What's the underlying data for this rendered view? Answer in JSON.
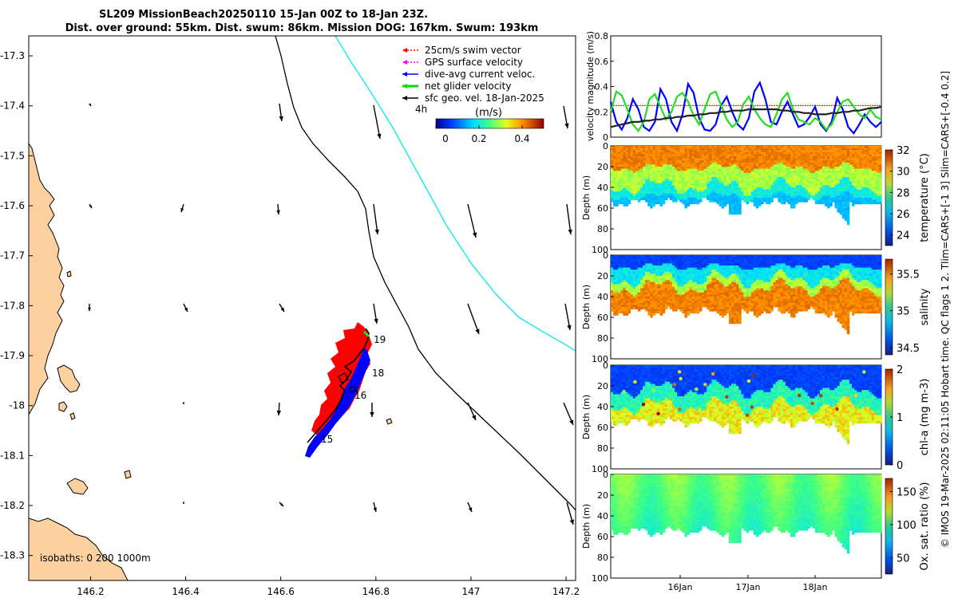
{
  "title": {
    "line1": "SL209 MissionBeach20250110 15-Jan 00Z to 18-Jan 23Z.",
    "line2": "Dist. over ground: 55km. Dist. swum: 86km. Mission DOG: 167km. Swum: 193km"
  },
  "map": {
    "x_ticks": [
      "146.2",
      "146.4",
      "146.6",
      "146.8",
      "147",
      "147.2"
    ],
    "y_ticks": [
      "-17.3",
      "-17.4",
      "-17.5",
      "-17.6",
      "-17.7",
      "-17.8",
      "-17.9",
      "-18",
      "-18.1",
      "-18.2",
      "-18.3"
    ],
    "xlim": [
      146.07,
      147.22
    ],
    "ylim": [
      -18.35,
      -17.26
    ],
    "legend": [
      {
        "label": "25cm/s swim vector",
        "color": "#ff0000"
      },
      {
        "label": "GPS surface velocity",
        "color": "#ff00ff"
      },
      {
        "label": "dive-avg current veloc.",
        "color": "#0000ff"
      },
      {
        "label": "net glider velocity",
        "color": "#00dd00"
      },
      {
        "label": "sfc geo. vel. 18-Jan-2025",
        "color": "#000000"
      }
    ],
    "legend_extra": "4h",
    "colorbar": {
      "label": "(m/s)",
      "ticks": [
        "0",
        "0.2",
        "0.4"
      ]
    },
    "isobaths": "isobaths: 0   200  1000m",
    "track_labels": [
      "19",
      "18",
      "16",
      "15"
    ]
  },
  "chart_data": [
    {
      "type": "line",
      "name": "velocity",
      "ylabel": "velocity magnitude (m/s)",
      "ylim": [
        0,
        0.8
      ],
      "y_ticks": [
        "0",
        "0.2",
        "0.4",
        "0.6",
        "0.8"
      ],
      "series": [
        {
          "name": "dive-avg current veloc.",
          "color": "#0000ff",
          "values": [
            0.28,
            0.12,
            0.06,
            0.15,
            0.3,
            0.22,
            0.08,
            0.05,
            0.12,
            0.38,
            0.3,
            0.12,
            0.05,
            0.18,
            0.42,
            0.35,
            0.15,
            0.06,
            0.05,
            0.1,
            0.25,
            0.32,
            0.2,
            0.1,
            0.06,
            0.15,
            0.36,
            0.43,
            0.3,
            0.12,
            0.1,
            0.2,
            0.28,
            0.18,
            0.08,
            0.1,
            0.16,
            0.24,
            0.1,
            0.05,
            0.12,
            0.31,
            0.22,
            0.08,
            0.03,
            0.1,
            0.18,
            0.12,
            0.08,
            0.12
          ]
        },
        {
          "name": "net glider velocity",
          "color": "#22dd22",
          "values": [
            0.2,
            0.36,
            0.33,
            0.22,
            0.1,
            0.05,
            0.12,
            0.3,
            0.34,
            0.24,
            0.14,
            0.2,
            0.32,
            0.35,
            0.28,
            0.17,
            0.1,
            0.22,
            0.34,
            0.36,
            0.25,
            0.14,
            0.08,
            0.12,
            0.26,
            0.32,
            0.22,
            0.15,
            0.1,
            0.08,
            0.18,
            0.3,
            0.35,
            0.22,
            0.14,
            0.12,
            0.1,
            0.15,
            0.12,
            0.06,
            0.1,
            0.2,
            0.28,
            0.3,
            0.24,
            0.18,
            0.15,
            0.22,
            0.16,
            0.14
          ]
        },
        {
          "name": "25cm/s swim vector",
          "color": "#ff0000",
          "values": [
            0.25,
            0.25,
            0.25,
            0.25,
            0.25,
            0.25,
            0.25,
            0.25,
            0.25,
            0.25,
            0.25,
            0.25,
            0.25,
            0.25,
            0.25,
            0.25,
            0.25,
            0.25,
            0.25,
            0.25,
            0.25,
            0.25,
            0.25,
            0.25,
            0.25,
            0.25,
            0.25,
            0.25,
            0.25,
            0.25,
            0.25,
            0.25,
            0.25,
            0.25,
            0.25,
            0.25,
            0.25,
            0.25,
            0.25,
            0.25,
            0.25,
            0.25,
            0.25,
            0.25,
            0.25,
            0.25,
            0.25,
            0.25,
            0.25,
            0.25
          ]
        },
        {
          "name": "sfc geo. vel.",
          "color": "#222222",
          "values": [
            0.08,
            0.09,
            0.1,
            0.11,
            0.12,
            0.12,
            0.13,
            0.13,
            0.14,
            0.14,
            0.15,
            0.15,
            0.16,
            0.16,
            0.17,
            0.17,
            0.18,
            0.18,
            0.19,
            0.19,
            0.2,
            0.2,
            0.21,
            0.21,
            0.21,
            0.22,
            0.22,
            0.22,
            0.22,
            0.22,
            0.22,
            0.21,
            0.21,
            0.2,
            0.2,
            0.19,
            0.19,
            0.18,
            0.18,
            0.18,
            0.19,
            0.19,
            0.2,
            0.2,
            0.21,
            0.21,
            0.22,
            0.23,
            0.23,
            0.24
          ]
        }
      ]
    },
    {
      "type": "heatmap",
      "name": "temperature",
      "ylabel": "Depth (m)",
      "y_ticks": [
        "0",
        "20",
        "40",
        "60",
        "80",
        "100"
      ],
      "cbar_label": "temperature (°C)",
      "cbar_ticks": [
        "24",
        "26",
        "28",
        "30",
        "32"
      ],
      "range": [
        23,
        32
      ]
    },
    {
      "type": "heatmap",
      "name": "salinity",
      "ylabel": "Depth (m)",
      "y_ticks": [
        "0",
        "20",
        "40",
        "60",
        "80",
        "100"
      ],
      "cbar_label": "salinity",
      "cbar_ticks": [
        "34.5",
        "35",
        "35.5"
      ],
      "range": [
        34.4,
        35.7
      ]
    },
    {
      "type": "heatmap",
      "name": "chl-a",
      "ylabel": "Depth (m)",
      "y_ticks": [
        "0",
        "20",
        "40",
        "60",
        "80",
        "100"
      ],
      "cbar_label": "chl-a (mg m-3)",
      "cbar_ticks": [
        "0",
        "1",
        "2"
      ],
      "range": [
        0,
        2
      ]
    },
    {
      "type": "heatmap",
      "name": "oxygen",
      "ylabel": "Depth (m)",
      "y_ticks": [
        "0",
        "20",
        "40",
        "60",
        "80",
        "100"
      ],
      "cbar_label": "Ox. sat. ratio (%)",
      "cbar_ticks": [
        "50",
        "100",
        "150"
      ],
      "range": [
        25,
        170
      ]
    }
  ],
  "time_ticks": [
    "16Jan",
    "17Jan",
    "18Jan"
  ],
  "footer": "© IMOS 19-Mar-2025 02:11:05 Hobart time. QC flags 1  2. Tlim=CARS+[-1 3] Slim=CARS+[-0.4 0.2]"
}
